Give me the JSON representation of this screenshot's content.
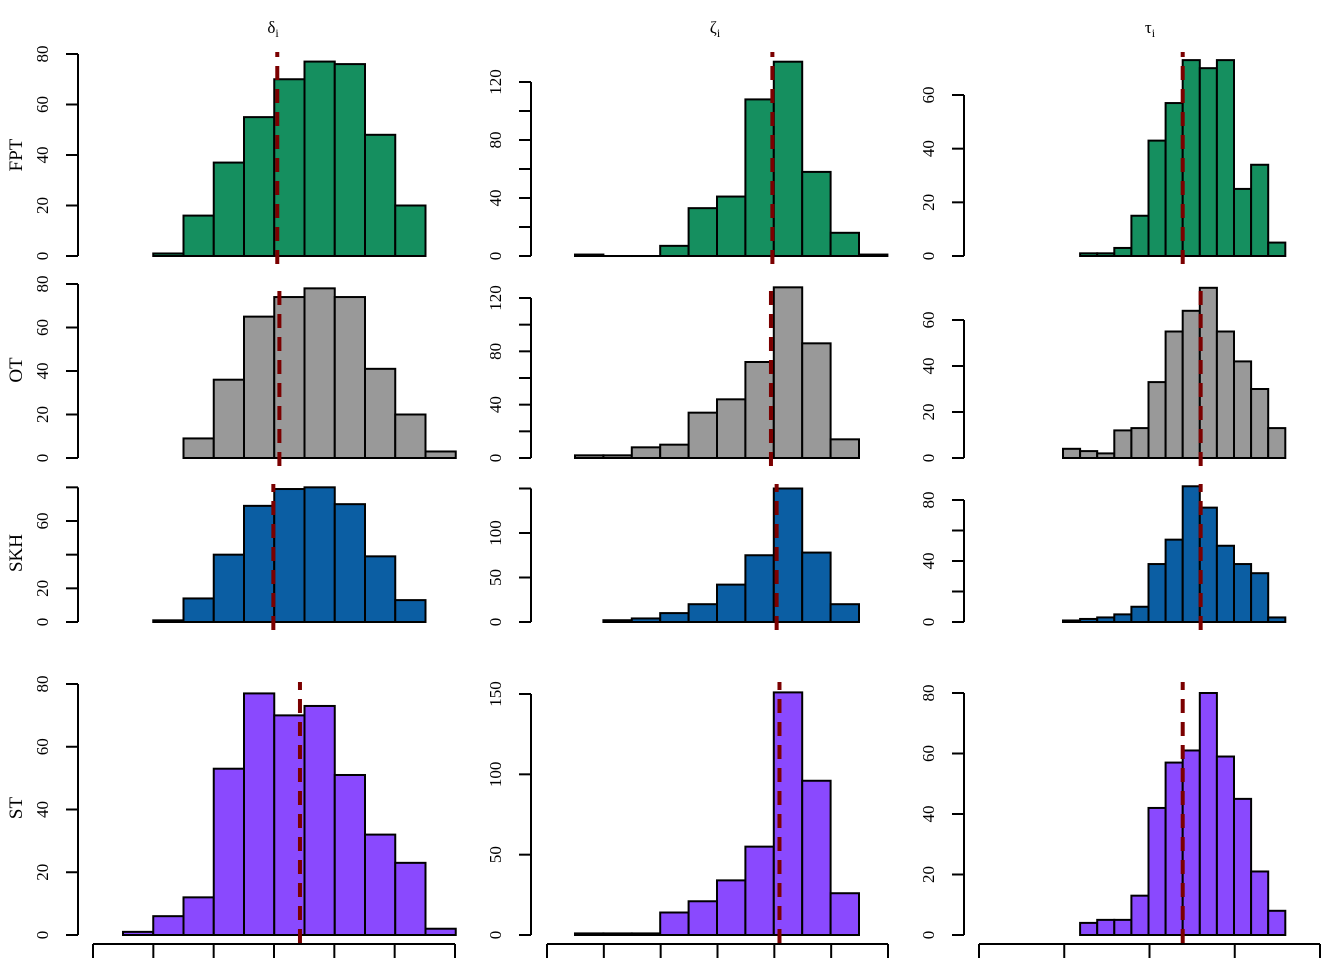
{
  "figure": {
    "column_titles": [
      {
        "symbol": "δ",
        "subscript": "i"
      },
      {
        "symbol": "ζ",
        "subscript": "i"
      },
      {
        "symbol": "τ",
        "subscript": "i"
      }
    ],
    "row_labels": [
      "FPT",
      "OT",
      "SKH",
      "ST"
    ],
    "colors": {
      "FPT": "#158f5f",
      "OT": "#999999",
      "SKH": "#0b5ea3",
      "ST": "#8a49fe",
      "reference_line": "#7b0000",
      "outline": "#000000"
    }
  },
  "chart_data": [
    {
      "type": "bar",
      "row": "FPT",
      "column": "δ_i",
      "title": "δ_i",
      "ylabel": "FPT",
      "yticks": [
        0,
        20,
        40,
        60,
        80
      ],
      "ylim": [
        0,
        80
      ],
      "bin_start_index": 1,
      "values": [
        1,
        16,
        37,
        55,
        70,
        77,
        76,
        48,
        20
      ],
      "reference_line_bin": 5.1
    },
    {
      "type": "bar",
      "row": "FPT",
      "column": "ζ_i",
      "title": "ζ_i",
      "ylabel": "",
      "yticks": [
        0,
        40,
        80,
        120
      ],
      "minor_yticks": [
        20,
        60,
        100
      ],
      "ylim": [
        0,
        134
      ],
      "bin_start_index": 0,
      "values": [
        1,
        0,
        0,
        7,
        33,
        41,
        108,
        134,
        58,
        16,
        1
      ],
      "reference_line_bin": 6.95
    },
    {
      "type": "bar",
      "row": "FPT",
      "column": "τ_i",
      "title": "τ_i",
      "ylabel": "",
      "yticks": [
        0,
        20,
        40,
        60
      ],
      "ylim": [
        0,
        60
      ],
      "bin_start_index": 1,
      "values": [
        1,
        1,
        3,
        15,
        43,
        57,
        73,
        70,
        73,
        25,
        34,
        5
      ],
      "reference_line_bin": 7.0
    },
    {
      "type": "bar",
      "row": "OT",
      "column": "δ_i",
      "ylabel": "OT",
      "yticks": [
        0,
        20,
        40,
        60,
        80
      ],
      "ylim": [
        0,
        80
      ],
      "bin_start_index": 2,
      "values": [
        9,
        36,
        65,
        74,
        78,
        74,
        41,
        20,
        3
      ],
      "reference_line_bin": 5.17
    },
    {
      "type": "bar",
      "row": "OT",
      "column": "ζ_i",
      "ylabel": "",
      "yticks": [
        0,
        40,
        80,
        120
      ],
      "minor_yticks": [
        20,
        60,
        100
      ],
      "ylim": [
        0,
        120
      ],
      "bin_start_index": 0,
      "values": [
        2,
        2,
        8,
        10,
        34,
        44,
        72,
        128,
        86,
        14
      ],
      "reference_line_bin": 6.9
    },
    {
      "type": "bar",
      "row": "OT",
      "column": "τ_i",
      "ylabel": "",
      "yticks": [
        0,
        20,
        40,
        60
      ],
      "ylim": [
        0,
        60
      ],
      "bin_start_index": 0,
      "values": [
        4,
        3,
        2,
        12,
        13,
        33,
        55,
        64,
        74,
        55,
        42,
        30,
        13
      ],
      "reference_line_bin": 8.05
    },
    {
      "type": "bar",
      "row": "SKH",
      "column": "δ_i",
      "ylabel": "SKH",
      "yticks": [
        0,
        20,
        60
      ],
      "minor_yticks": [
        40,
        80
      ],
      "ylim": [
        0,
        80
      ],
      "bin_start_index": 1,
      "values": [
        1,
        14,
        40,
        69,
        79,
        80,
        70,
        39,
        13
      ],
      "reference_line_bin": 4.97
    },
    {
      "type": "bar",
      "row": "SKH",
      "column": "ζ_i",
      "ylabel": "",
      "yticks": [
        0,
        50,
        100
      ],
      "minor_yticks": [
        150
      ],
      "ylim": [
        0,
        150
      ],
      "bin_start_index": 1,
      "values": [
        2,
        4,
        10,
        20,
        42,
        75,
        150,
        78,
        20
      ],
      "reference_line_bin": 7.1
    },
    {
      "type": "bar",
      "row": "SKH",
      "column": "τ_i",
      "ylabel": "",
      "yticks": [
        0,
        40,
        80
      ],
      "minor_yticks": [
        20,
        60
      ],
      "ylim": [
        0,
        80
      ],
      "bin_start_index": 0,
      "values": [
        1,
        2,
        3,
        5,
        10,
        38,
        54,
        89,
        75,
        50,
        38,
        32,
        3
      ],
      "reference_line_bin": 8.05
    },
    {
      "type": "bar",
      "row": "ST",
      "column": "δ_i",
      "ylabel": "ST",
      "yticks": [
        0,
        20,
        40,
        60,
        80
      ],
      "ylim": [
        0,
        80
      ],
      "bin_start_index": 0,
      "values": [
        1,
        6,
        12,
        53,
        77,
        70,
        73,
        51,
        32,
        23,
        2
      ],
      "reference_line_bin": 5.85,
      "x_axis_ticks": 7
    },
    {
      "type": "bar",
      "row": "ST",
      "column": "ζ_i",
      "ylabel": "",
      "yticks": [
        0,
        50,
        100,
        150
      ],
      "ylim": [
        0,
        150
      ],
      "bin_start_index": 0,
      "values": [
        1,
        1,
        1,
        14,
        21,
        34,
        55,
        151,
        96,
        26
      ],
      "reference_line_bin": 7.2,
      "x_axis_ticks": 7
    },
    {
      "type": "bar",
      "row": "ST",
      "column": "τ_i",
      "ylabel": "",
      "yticks": [
        0,
        20,
        40,
        60,
        80
      ],
      "ylim": [
        0,
        80
      ],
      "bin_start_index": 1,
      "values": [
        4,
        5,
        5,
        13,
        42,
        57,
        61,
        80,
        59,
        45,
        21,
        8
      ],
      "reference_line_bin": 7.0,
      "x_axis_ticks": 5
    }
  ]
}
